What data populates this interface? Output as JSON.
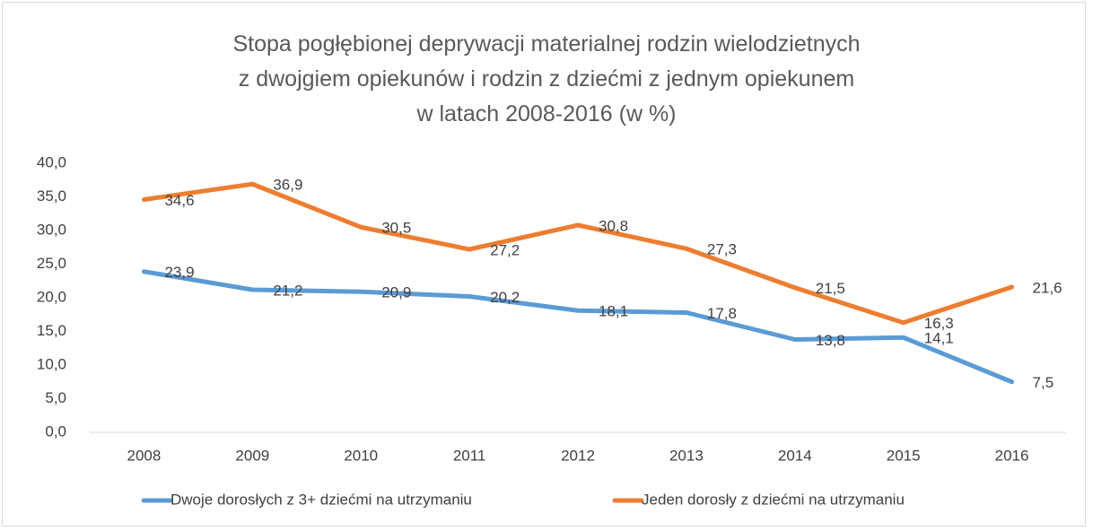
{
  "chart_data": {
    "type": "line",
    "title": "Stopa pogłębionej deprywacji materialnej rodzin wielodzietnych z dwojgiem opiekunów i rodzin z dziećmi z jednym opiekunem w latach 2008-2016 (w %)",
    "categories": [
      "2008",
      "2009",
      "2010",
      "2011",
      "2012",
      "2013",
      "2014",
      "2015",
      "2016"
    ],
    "series": [
      {
        "name": "Dwoje dorosłych z 3+ dziećmi na utrzymaniu",
        "color": "#5b9bd5",
        "values": [
          23.9,
          21.2,
          20.9,
          20.2,
          18.1,
          17.8,
          13.8,
          14.1,
          7.5
        ],
        "value_labels": [
          "23,9",
          "21,2",
          "20,9",
          "20,2",
          "18,1",
          "17,8",
          "13,8",
          "14,1",
          "7,5"
        ]
      },
      {
        "name": "Jeden dorosły z dziećmi na utrzymaniu",
        "color": "#ed7d31",
        "values": [
          34.6,
          36.9,
          30.5,
          27.2,
          30.8,
          27.3,
          21.5,
          16.3,
          21.6
        ],
        "value_labels": [
          "34,6",
          "36,9",
          "30,5",
          "27,2",
          "30,8",
          "27,3",
          "21,5",
          "16,3",
          "21,6"
        ]
      }
    ],
    "ylim": [
      0,
      40
    ],
    "yticks": [
      {
        "value": 0,
        "label": "0,0"
      },
      {
        "value": 5,
        "label": "5,0"
      },
      {
        "value": 10,
        "label": "10,0"
      },
      {
        "value": 15,
        "label": "15,0"
      },
      {
        "value": 20,
        "label": "20,0"
      },
      {
        "value": 25,
        "label": "25,0"
      },
      {
        "value": 30,
        "label": "30,0"
      },
      {
        "value": 35,
        "label": "35,0"
      },
      {
        "value": 40,
        "label": "40,0"
      }
    ],
    "grid": false,
    "legend": "bottom"
  }
}
